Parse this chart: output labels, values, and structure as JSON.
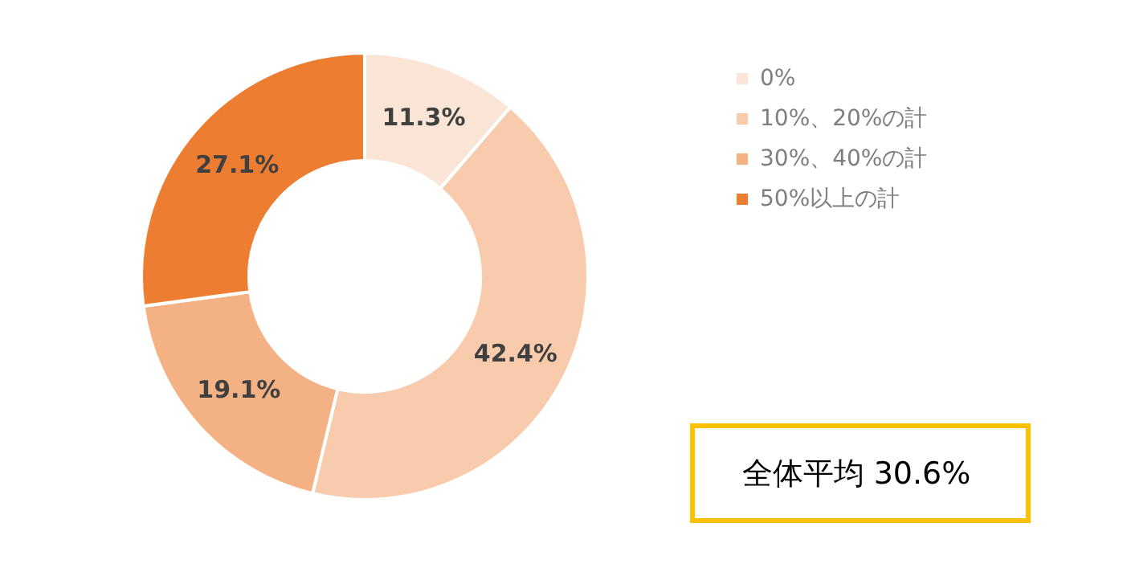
{
  "chart_data": {
    "type": "donut",
    "categories": [
      "0%",
      "10%、20%の計",
      "30%、40%の計",
      "50%以上の計"
    ],
    "values": [
      11.3,
      42.4,
      19.1,
      27.1
    ],
    "colors": [
      "#fbe5d6",
      "#f8cbad",
      "#f4b183",
      "#ed7d31"
    ],
    "value_labels": [
      "11.3%",
      "42.4%",
      "19.1%",
      "27.1%"
    ],
    "legend": "right",
    "annotations": [
      "全体平均 30.6%"
    ]
  }
}
